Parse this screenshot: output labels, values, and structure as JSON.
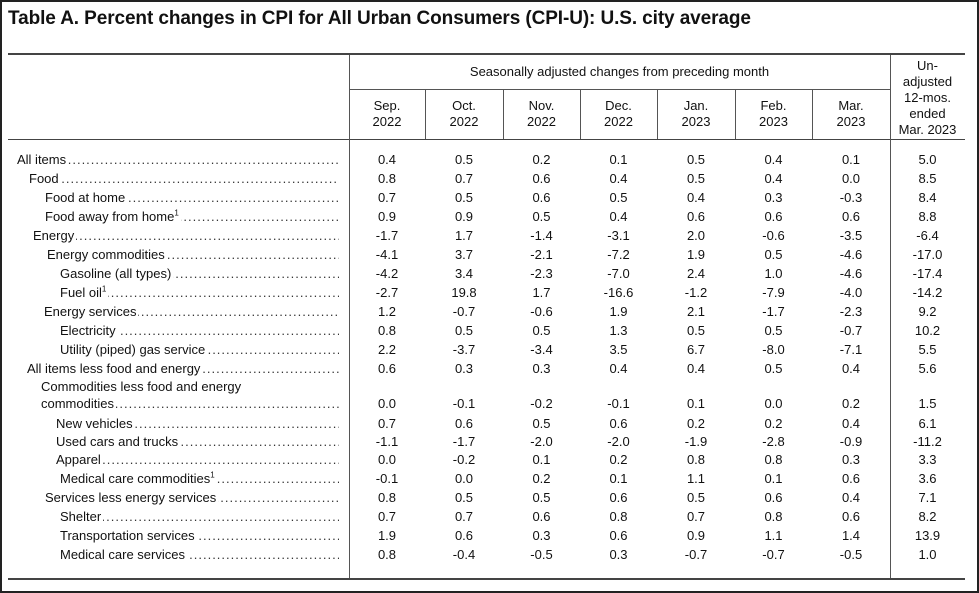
{
  "title": "Table A. Percent changes in CPI for All Urban Consumers (CPI-U): U.S. city average",
  "header": {
    "seasonally_adjusted": "Seasonally adjusted changes from preceding month",
    "unadjusted": "Un-\nadjusted\n12-mos.\nended\nMar. 2023",
    "months": [
      "Sep.\n2022",
      "Oct.\n2022",
      "Nov.\n2022",
      "Dec.\n2022",
      "Jan.\n2023",
      "Feb.\n2023",
      "Mar.\n2023"
    ]
  },
  "rows": [
    {
      "label": "All items",
      "values": [
        "0.4",
        "0.5",
        "0.2",
        "0.1",
        "0.5",
        "0.4",
        "0.1",
        "5.0"
      ]
    },
    {
      "label": "Food",
      "values": [
        "0.8",
        "0.7",
        "0.6",
        "0.4",
        "0.5",
        "0.4",
        "0.0",
        "8.5"
      ]
    },
    {
      "label": "Food at home",
      "values": [
        "0.7",
        "0.5",
        "0.6",
        "0.5",
        "0.4",
        "0.3",
        "-0.3",
        "8.4"
      ]
    },
    {
      "label": "Food away from home",
      "sup": "1",
      "values": [
        "0.9",
        "0.9",
        "0.5",
        "0.4",
        "0.6",
        "0.6",
        "0.6",
        "8.8"
      ]
    },
    {
      "label": "Energy",
      "values": [
        "-1.7",
        "1.7",
        "-1.4",
        "-3.1",
        "2.0",
        "-0.6",
        "-3.5",
        "-6.4"
      ]
    },
    {
      "label": "Energy commodities",
      "values": [
        "-4.1",
        "3.7",
        "-2.1",
        "-7.2",
        "1.9",
        "0.5",
        "-4.6",
        "-17.0"
      ]
    },
    {
      "label": "Gasoline (all types)",
      "values": [
        "-4.2",
        "3.4",
        "-2.3",
        "-7.0",
        "2.4",
        "1.0",
        "-4.6",
        "-17.4"
      ]
    },
    {
      "label": "Fuel oil",
      "sup": "1",
      "values": [
        "-2.7",
        "19.8",
        "1.7",
        "-16.6",
        "-1.2",
        "-7.9",
        "-4.0",
        "-14.2"
      ]
    },
    {
      "label": "Energy services",
      "values": [
        "1.2",
        "-0.7",
        "-0.6",
        "1.9",
        "2.1",
        "-1.7",
        "-2.3",
        "9.2"
      ]
    },
    {
      "label": "Electricity",
      "values": [
        "0.8",
        "0.5",
        "0.5",
        "1.3",
        "0.5",
        "0.5",
        "-0.7",
        "10.2"
      ]
    },
    {
      "label": "Utility (piped) gas service",
      "values": [
        "2.2",
        "-3.7",
        "-3.4",
        "3.5",
        "6.7",
        "-8.0",
        "-7.1",
        "5.5"
      ]
    },
    {
      "label": "All items less food and energy",
      "values": [
        "0.6",
        "0.3",
        "0.3",
        "0.4",
        "0.4",
        "0.5",
        "0.4",
        "5.6"
      ]
    },
    {
      "label": "Commodities less food and energy",
      "label2": "commodities",
      "values": [
        "0.0",
        "-0.1",
        "-0.2",
        "-0.1",
        "0.1",
        "0.0",
        "0.2",
        "1.5"
      ]
    },
    {
      "label": "New vehicles",
      "values": [
        "0.7",
        "0.6",
        "0.5",
        "0.6",
        "0.2",
        "0.2",
        "0.4",
        "6.1"
      ]
    },
    {
      "label": "Used cars and trucks",
      "values": [
        "-1.1",
        "-1.7",
        "-2.0",
        "-2.0",
        "-1.9",
        "-2.8",
        "-0.9",
        "-11.2"
      ]
    },
    {
      "label": "Apparel",
      "values": [
        "0.0",
        "-0.2",
        "0.1",
        "0.2",
        "0.8",
        "0.8",
        "0.3",
        "3.3"
      ]
    },
    {
      "label": "Medical   care   commodities",
      "sup": "1",
      "values": [
        "-0.1",
        "0.0",
        "0.2",
        "0.1",
        "1.1",
        "0.1",
        "0.6",
        "3.6"
      ]
    },
    {
      "label": "Services less energy services",
      "values": [
        "0.8",
        "0.5",
        "0.5",
        "0.6",
        "0.5",
        "0.6",
        "0.4",
        "7.1"
      ]
    },
    {
      "label": "Shelter",
      "values": [
        "0.7",
        "0.7",
        "0.6",
        "0.8",
        "0.7",
        "0.8",
        "0.6",
        "8.2"
      ]
    },
    {
      "label": "Transportation services",
      "values": [
        "1.9",
        "0.6",
        "0.3",
        "0.6",
        "0.9",
        "1.1",
        "1.4",
        "13.9"
      ]
    },
    {
      "label": "Medical care services",
      "values": [
        "0.8",
        "-0.4",
        "-0.5",
        "0.3",
        "-0.7",
        "-0.7",
        "-0.5",
        "1.0"
      ]
    }
  ]
}
